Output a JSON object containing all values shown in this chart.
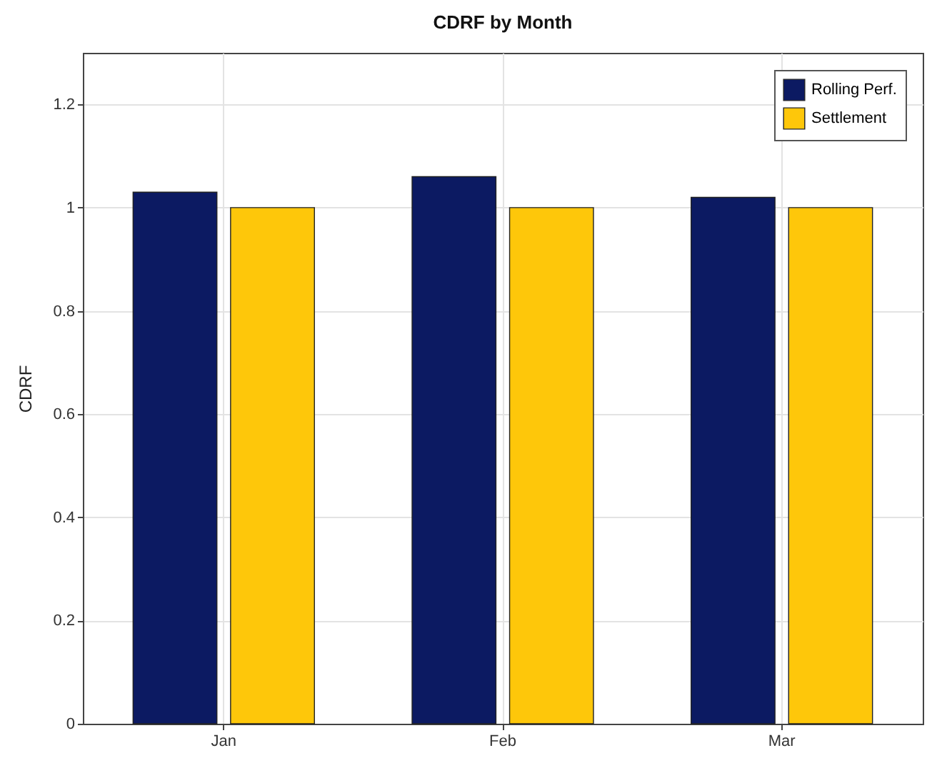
{
  "chart_data": {
    "type": "bar",
    "title": "CDRF by Month",
    "ylabel": "CDRF",
    "categories": [
      "Jan",
      "Feb",
      "Mar"
    ],
    "series": [
      {
        "name": "Rolling Perf.",
        "color": "#0c1a62",
        "values": [
          1.03,
          1.06,
          1.02
        ]
      },
      {
        "name": "Settlement",
        "color": "#fec70a",
        "values": [
          1,
          1,
          1
        ]
      }
    ],
    "ylim": [
      0,
      1.3
    ],
    "yticks": [
      0,
      0.2,
      0.4,
      0.6,
      0.8,
      1,
      1.2
    ],
    "grid": true,
    "legend": "top right"
  }
}
